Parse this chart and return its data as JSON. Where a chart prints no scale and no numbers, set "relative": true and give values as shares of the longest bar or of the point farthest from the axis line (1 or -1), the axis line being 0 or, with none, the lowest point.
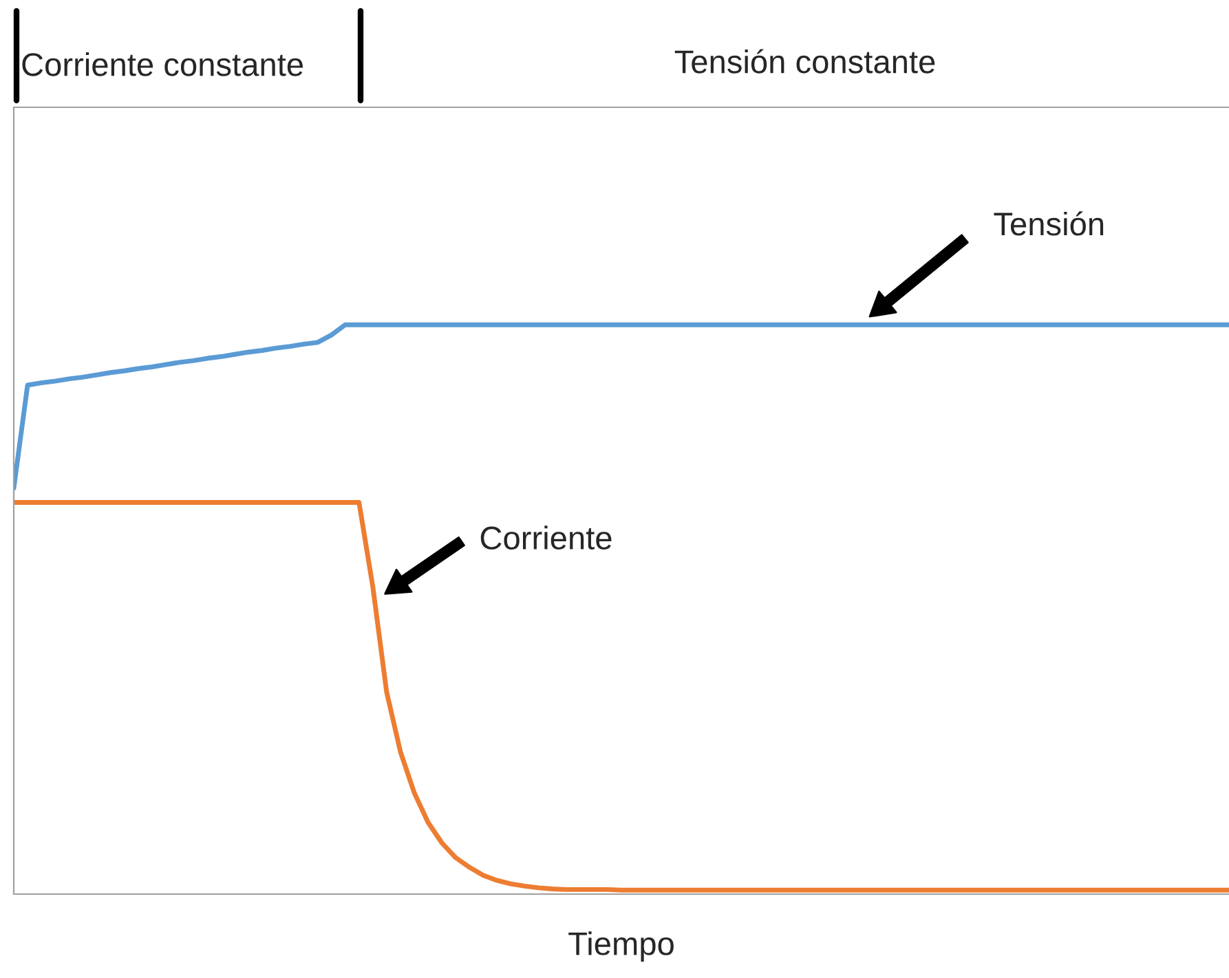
{
  "chart_data": {
    "type": "line",
    "relative": true,
    "xlabel": "Tiempo",
    "legend": false,
    "grid": false,
    "categories": [
      null,
      null,
      null,
      null,
      null,
      null,
      null,
      null,
      null,
      null,
      null,
      null,
      null,
      null,
      null,
      null,
      null,
      null,
      null,
      null,
      null,
      null,
      null,
      null,
      null,
      null,
      null,
      null,
      null,
      null,
      null,
      null,
      null,
      null,
      null,
      null,
      null,
      null,
      null,
      null,
      null,
      null,
      null,
      null,
      null,
      null,
      null,
      null,
      null,
      null,
      null,
      null,
      null,
      null,
      null,
      null,
      null,
      null,
      null,
      null,
      null,
      null,
      null,
      null,
      null,
      null,
      null,
      null,
      null,
      null,
      null,
      null,
      null,
      null,
      null,
      null,
      null,
      null,
      null,
      null,
      null,
      null,
      null,
      null,
      null,
      null,
      null,
      null,
      null
    ],
    "series": [
      {
        "color": "#5b9bd5",
        "values": [
          0.713,
          0.894,
          0.898,
          0.901,
          0.905,
          0.908,
          0.912,
          0.916,
          0.919,
          0.923,
          0.926,
          0.93,
          0.934,
          0.937,
          0.941,
          0.944,
          0.948,
          0.952,
          0.955,
          0.959,
          0.962,
          0.966,
          0.969,
          0.982,
          1.0,
          1.0,
          1.0,
          1.0,
          1.0,
          1.0,
          1.0,
          1.0,
          1.0,
          1.0,
          1.0,
          1.0,
          1.0,
          1.0,
          1.0,
          1.0,
          1.0,
          1.0,
          1.0,
          1.0,
          1.0,
          1.0,
          1.0,
          1.0,
          1.0,
          1.0,
          1.0,
          1.0,
          1.0,
          1.0,
          1.0,
          1.0,
          1.0,
          1.0,
          1.0,
          1.0,
          1.0,
          1.0,
          1.0,
          1.0,
          1.0,
          1.0,
          1.0,
          1.0,
          1.0,
          1.0,
          1.0,
          1.0,
          1.0,
          1.0,
          1.0,
          1.0,
          1.0,
          1.0,
          1.0,
          1.0,
          1.0,
          1.0,
          1.0,
          1.0,
          1.0,
          1.0,
          1.0,
          1.0,
          1.0
        ]
      },
      {
        "color": "#ed7d31",
        "values": [
          0.688,
          0.688,
          0.688,
          0.688,
          0.688,
          0.688,
          0.688,
          0.688,
          0.688,
          0.688,
          0.688,
          0.688,
          0.688,
          0.688,
          0.688,
          0.688,
          0.688,
          0.688,
          0.688,
          0.688,
          0.688,
          0.688,
          0.688,
          0.688,
          0.688,
          0.688,
          0.54,
          0.355,
          0.25,
          0.178,
          0.126,
          0.09,
          0.064,
          0.047,
          0.033,
          0.024,
          0.018,
          0.014,
          0.011,
          0.009,
          0.008,
          0.008,
          0.008,
          0.008,
          0.007,
          0.007,
          0.007,
          0.007,
          0.007,
          0.007,
          0.007,
          0.007,
          0.007,
          0.007,
          0.007,
          0.007,
          0.007,
          0.007,
          0.007,
          0.007,
          0.007,
          0.007,
          0.007,
          0.007,
          0.007,
          0.007,
          0.007,
          0.007,
          0.007,
          0.007,
          0.007,
          0.007,
          0.007,
          0.007,
          0.007,
          0.007,
          0.007,
          0.007,
          0.007,
          0.007,
          0.007,
          0.007,
          0.007,
          0.007,
          0.007,
          0.007,
          0.007,
          0.007,
          0.007
        ]
      }
    ],
    "annotations": [
      "Corriente constante",
      "Tensión constante",
      "Tensión",
      "Corriente"
    ]
  }
}
